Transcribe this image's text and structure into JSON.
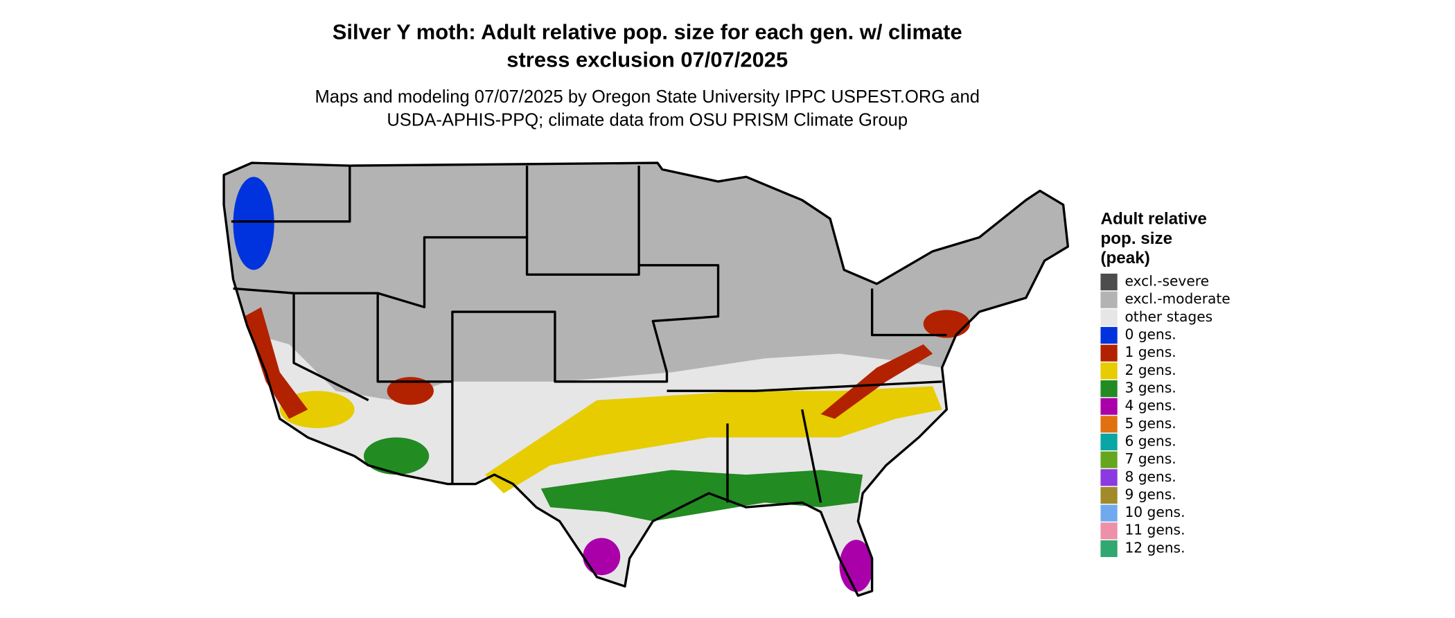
{
  "header": {
    "title_lines": [
      "Silver Y moth: Adult relative pop. size for each gen. w/ climate",
      "stress exclusion 07/07/2025"
    ],
    "subtitle_lines": [
      "Maps and modeling 07/07/2025 by Oregon State University IPPC USPEST.ORG and",
      "USDA-APHIS-PPQ; climate data from OSU PRISM Climate Group"
    ]
  },
  "legend": {
    "title_lines": [
      "Adult relative",
      "pop. size",
      "(peak)"
    ],
    "items": [
      {
        "label": "excl.-severe",
        "color": "#4d4d4d"
      },
      {
        "label": "excl.-moderate",
        "color": "#b3b3b3"
      },
      {
        "label": "other stages",
        "color": "#e6e6e6"
      },
      {
        "label": "0 gens.",
        "color": "#0033dd"
      },
      {
        "label": "1 gens.",
        "color": "#b22200"
      },
      {
        "label": "2 gens.",
        "color": "#e6cc00"
      },
      {
        "label": "3 gens.",
        "color": "#228b22"
      },
      {
        "label": "4 gens.",
        "color": "#aa00aa"
      },
      {
        "label": "5 gens.",
        "color": "#e07010"
      },
      {
        "label": "6 gens.",
        "color": "#0aa6a6"
      },
      {
        "label": "7 gens.",
        "color": "#66a61e"
      },
      {
        "label": "8 gens.",
        "color": "#8a3ae0"
      },
      {
        "label": "9 gens.",
        "color": "#a08a2a"
      },
      {
        "label": "10 gens.",
        "color": "#70aaee"
      },
      {
        "label": "11 gens.",
        "color": "#ee90a8"
      },
      {
        "label": "12 gens.",
        "color": "#30a870"
      }
    ]
  }
}
